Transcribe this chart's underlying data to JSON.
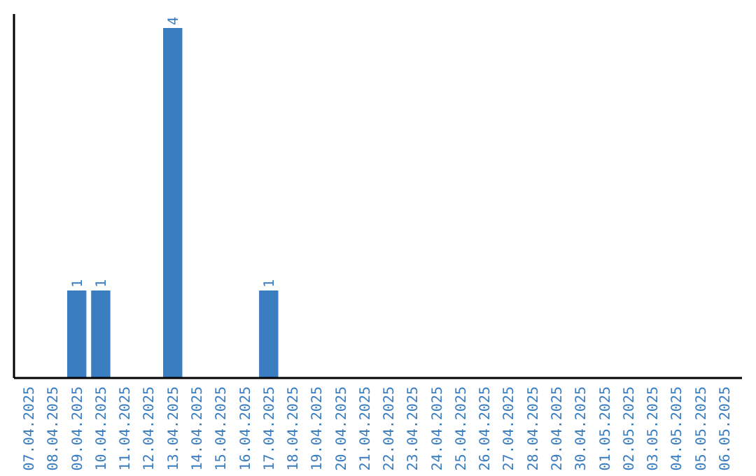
{
  "chart_data": {
    "type": "bar",
    "categories": [
      "07.04.2025",
      "08.04.2025",
      "09.04.2025",
      "10.04.2025",
      "11.04.2025",
      "12.04.2025",
      "13.04.2025",
      "14.04.2025",
      "15.04.2025",
      "16.04.2025",
      "17.04.2025",
      "18.04.2025",
      "19.04.2025",
      "20.04.2025",
      "21.04.2025",
      "22.04.2025",
      "23.04.2025",
      "24.04.2025",
      "25.04.2025",
      "26.04.2025",
      "27.04.2025",
      "28.04.2025",
      "29.04.2025",
      "30.04.2025",
      "01.05.2025",
      "02.05.2025",
      "03.05.2025",
      "04.05.2025",
      "05.05.2025",
      "06.05.2025"
    ],
    "values": [
      0,
      0,
      1,
      1,
      0,
      0,
      4,
      0,
      0,
      0,
      1,
      0,
      0,
      0,
      0,
      0,
      0,
      0,
      0,
      0,
      0,
      0,
      0,
      0,
      0,
      0,
      0,
      0,
      0,
      0
    ],
    "value_labels": [
      null,
      null,
      "1",
      "1",
      null,
      null,
      "4",
      null,
      null,
      null,
      "1",
      null,
      null,
      null,
      null,
      null,
      null,
      null,
      null,
      null,
      null,
      null,
      null,
      null,
      null,
      null,
      null,
      null,
      null,
      null
    ],
    "color": "#3a7dc0",
    "tick_labels": "x"
  }
}
